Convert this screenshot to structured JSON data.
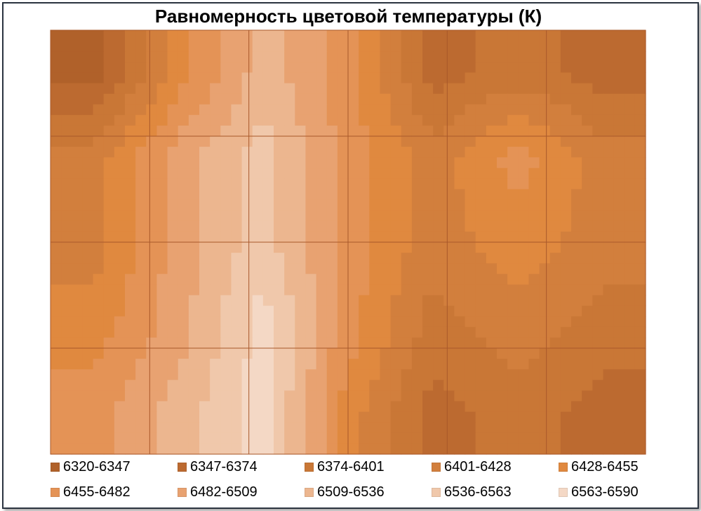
{
  "chart_data": {
    "type": "heatmap",
    "title": "Равномерность цветовой температуры (К)",
    "xlabel": "",
    "ylabel": "",
    "grid": true,
    "legend_position": "bottom",
    "levels": [
      {
        "label": "6320-6347",
        "color": "#b0612a"
      },
      {
        "label": "6347-6374",
        "color": "#bc6a30"
      },
      {
        "label": "6374-6401",
        "color": "#c97736"
      },
      {
        "label": "6401-6428",
        "color": "#d27f3d"
      },
      {
        "label": "6428-6455",
        "color": "#e0893f"
      },
      {
        "label": "6455-6482",
        "color": "#e49356"
      },
      {
        "label": "6482-6509",
        "color": "#e8a271"
      },
      {
        "label": "6509-6536",
        "color": "#ecb68f"
      },
      {
        "label": "6536-6563",
        "color": "#f0c8ab"
      },
      {
        "label": "6563-6590",
        "color": "#f4d8c5"
      }
    ],
    "rows": 5,
    "cols": 7,
    "level_grid": [
      [
        0,
        4,
        7,
        5,
        1,
        2,
        1
      ],
      [
        3,
        6,
        8,
        5,
        3,
        5,
        3
      ],
      [
        3,
        6,
        8,
        5,
        3,
        4,
        3
      ],
      [
        4,
        6,
        9,
        5,
        2,
        3,
        2
      ],
      [
        5,
        7,
        9,
        4,
        1,
        2,
        1
      ]
    ]
  }
}
